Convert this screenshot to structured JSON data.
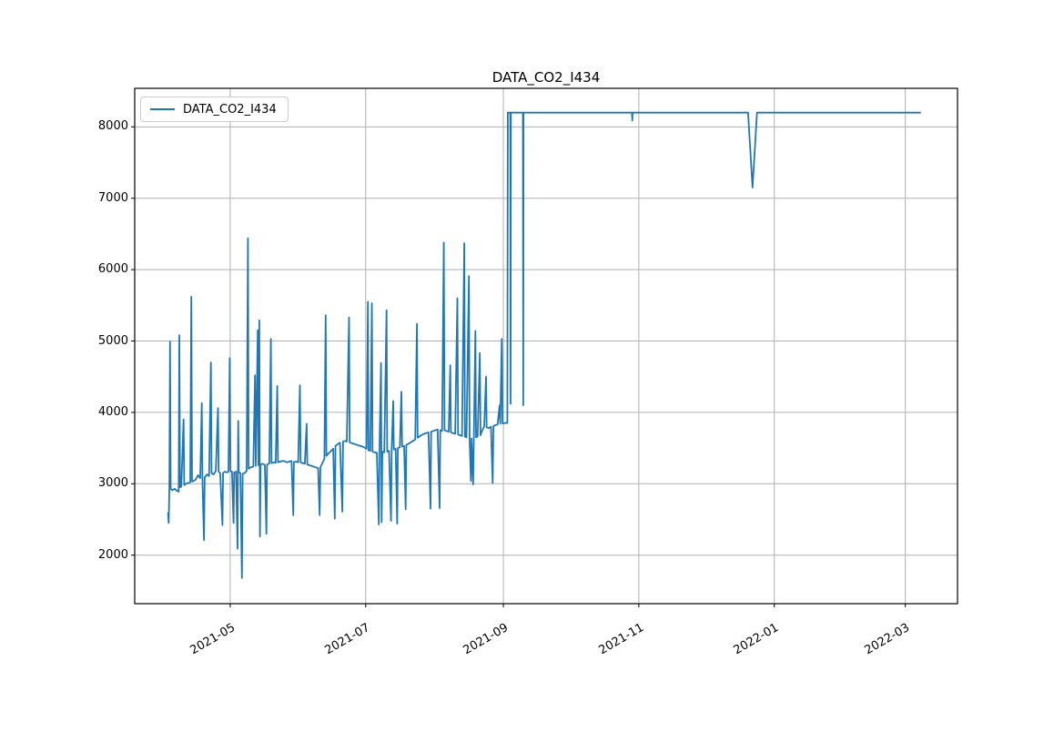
{
  "chart_data": {
    "type": "line",
    "title": "DATA_CO2_I434",
    "legend": {
      "label": "DATA_CO2_I434",
      "position": "upper left"
    },
    "grid": true,
    "line_color": "#1f77b4",
    "grid_color": "#b0b0b0",
    "spine_color": "#000000",
    "background_color": "#ffffff",
    "x_axis": {
      "kind": "time",
      "unit": "days since 2021-04-01",
      "range": [
        -13,
        357.5
      ],
      "ticks": [
        {
          "day": 30,
          "label": "2021-05"
        },
        {
          "day": 91,
          "label": "2021-07"
        },
        {
          "day": 153,
          "label": "2021-09"
        },
        {
          "day": 214,
          "label": "2021-11"
        },
        {
          "day": 275,
          "label": "2022-01"
        },
        {
          "day": 334,
          "label": "2022-03"
        }
      ]
    },
    "y_axis": {
      "range": [
        1320,
        8540
      ],
      "ticks": [
        2000,
        3000,
        4000,
        5000,
        6000,
        7000,
        8000
      ]
    },
    "series": [
      {
        "name": "DATA_CO2_I434",
        "points": [
          [
            2.0,
            2600
          ],
          [
            2.3,
            2450
          ],
          [
            2.6,
            2950
          ],
          [
            2.9,
            4990
          ],
          [
            3.2,
            2930
          ],
          [
            4.0,
            2910
          ],
          [
            5.0,
            2930
          ],
          [
            6.0,
            2900
          ],
          [
            6.8,
            2890
          ],
          [
            7.1,
            5080
          ],
          [
            7.4,
            2950
          ],
          [
            8.0,
            2960
          ],
          [
            9.0,
            3900
          ],
          [
            9.3,
            2980
          ],
          [
            10.0,
            3000
          ],
          [
            11.0,
            3010
          ],
          [
            12.0,
            3020
          ],
          [
            12.5,
            5620
          ],
          [
            12.8,
            3030
          ],
          [
            13.5,
            3040
          ],
          [
            14.5,
            3060
          ],
          [
            15.5,
            3120
          ],
          [
            16.5,
            3080
          ],
          [
            17.2,
            4130
          ],
          [
            17.5,
            3070
          ],
          [
            18.2,
            2210
          ],
          [
            18.5,
            3090
          ],
          [
            19.5,
            3130
          ],
          [
            20.5,
            3110
          ],
          [
            21.3,
            4700
          ],
          [
            21.6,
            3150
          ],
          [
            22.5,
            3130
          ],
          [
            23.5,
            3180
          ],
          [
            24.5,
            4060
          ],
          [
            24.8,
            3170
          ],
          [
            25.5,
            3150
          ],
          [
            26.5,
            2420
          ],
          [
            26.8,
            3150
          ],
          [
            27.5,
            3170
          ],
          [
            28.5,
            3160
          ],
          [
            29.2,
            3170
          ],
          [
            29.8,
            4760
          ],
          [
            30.1,
            3180
          ],
          [
            30.8,
            3170
          ],
          [
            31.5,
            2450
          ],
          [
            31.8,
            3160
          ],
          [
            32.6,
            3170
          ],
          [
            33.3,
            2090
          ],
          [
            33.6,
            3880
          ],
          [
            33.9,
            3160
          ],
          [
            34.6,
            3150
          ],
          [
            35.3,
            1680
          ],
          [
            35.6,
            3140
          ],
          [
            36.5,
            3150
          ],
          [
            37.4,
            3180
          ],
          [
            38.0,
            6440
          ],
          [
            38.3,
            3210
          ],
          [
            39.2,
            3230
          ],
          [
            40.4,
            3240
          ],
          [
            41.2,
            4520
          ],
          [
            41.5,
            3250
          ],
          [
            42.4,
            5150
          ],
          [
            42.7,
            3260
          ],
          [
            43.1,
            5290
          ],
          [
            43.4,
            2260
          ],
          [
            43.7,
            3270
          ],
          [
            44.6,
            3280
          ],
          [
            45.6,
            3265
          ],
          [
            46.3,
            2300
          ],
          [
            46.6,
            3270
          ],
          [
            47.6,
            3285
          ],
          [
            48.3,
            5030
          ],
          [
            48.6,
            3290
          ],
          [
            49.6,
            3300
          ],
          [
            50.5,
            3295
          ],
          [
            51.2,
            4370
          ],
          [
            51.5,
            3300
          ],
          [
            52.5,
            3310
          ],
          [
            53.6,
            3320
          ],
          [
            54.6,
            3315
          ],
          [
            55.6,
            3300
          ],
          [
            56.6,
            3310
          ],
          [
            57.6,
            3320
          ],
          [
            58.4,
            2560
          ],
          [
            58.7,
            3305
          ],
          [
            59.6,
            3310
          ],
          [
            60.6,
            3300
          ],
          [
            61.4,
            4380
          ],
          [
            61.7,
            3300
          ],
          [
            62.6,
            3290
          ],
          [
            63.6,
            3280
          ],
          [
            64.4,
            3840
          ],
          [
            64.7,
            3270
          ],
          [
            65.6,
            3260
          ],
          [
            66.6,
            3250
          ],
          [
            67.6,
            3240
          ],
          [
            68.6,
            3230
          ],
          [
            69.6,
            3220
          ],
          [
            70.3,
            2560
          ],
          [
            70.6,
            3230
          ],
          [
            71.5,
            3290
          ],
          [
            72.4,
            3350
          ],
          [
            73.0,
            5360
          ],
          [
            73.3,
            3390
          ],
          [
            74.4,
            3430
          ],
          [
            75.4,
            3460
          ],
          [
            76.4,
            3490
          ],
          [
            77.1,
            2510
          ],
          [
            77.4,
            3530
          ],
          [
            78.4,
            3555
          ],
          [
            79.4,
            3575
          ],
          [
            80.5,
            2610
          ],
          [
            80.8,
            3590
          ],
          [
            81.5,
            3600
          ],
          [
            82.5,
            3590
          ],
          [
            83.5,
            5330
          ],
          [
            83.8,
            3580
          ],
          [
            84.6,
            3570
          ],
          [
            85.6,
            3560
          ],
          [
            86.6,
            3550
          ],
          [
            87.6,
            3540
          ],
          [
            88.6,
            3530
          ],
          [
            89.6,
            3520
          ],
          [
            90.6,
            3505
          ],
          [
            91.4,
            3490
          ],
          [
            92.0,
            5550
          ],
          [
            92.3,
            3470
          ],
          [
            93.1,
            3460
          ],
          [
            93.8,
            5530
          ],
          [
            94.1,
            3450
          ],
          [
            95.0,
            3440
          ],
          [
            96.0,
            3435
          ],
          [
            96.9,
            2430
          ],
          [
            97.2,
            3440
          ],
          [
            97.9,
            4690
          ],
          [
            98.2,
            2460
          ],
          [
            98.5,
            3450
          ],
          [
            99.4,
            3440
          ],
          [
            100.4,
            5430
          ],
          [
            100.7,
            3450
          ],
          [
            101.5,
            3460
          ],
          [
            102.4,
            2480
          ],
          [
            102.7,
            3470
          ],
          [
            103.4,
            4160
          ],
          [
            103.7,
            3480
          ],
          [
            104.5,
            3490
          ],
          [
            105.2,
            2440
          ],
          [
            105.5,
            3500
          ],
          [
            106.4,
            3510
          ],
          [
            107.1,
            4290
          ],
          [
            107.4,
            3520
          ],
          [
            108.3,
            3530
          ],
          [
            109.0,
            2640
          ],
          [
            109.3,
            3545
          ],
          [
            110.3,
            3560
          ],
          [
            111.3,
            3580
          ],
          [
            112.3,
            3600
          ],
          [
            113.3,
            3620
          ],
          [
            114.1,
            5240
          ],
          [
            114.4,
            3645
          ],
          [
            115.3,
            3665
          ],
          [
            116.3,
            3685
          ],
          [
            117.3,
            3700
          ],
          [
            118.3,
            3710
          ],
          [
            119.3,
            3720
          ],
          [
            120.2,
            2650
          ],
          [
            120.5,
            3730
          ],
          [
            121.4,
            3740
          ],
          [
            122.4,
            3750
          ],
          [
            123.4,
            3760
          ],
          [
            124.3,
            2660
          ],
          [
            124.6,
            3750
          ],
          [
            125.4,
            3740
          ],
          [
            126.2,
            6380
          ],
          [
            126.5,
            3750
          ],
          [
            127.4,
            3740
          ],
          [
            128.4,
            3730
          ],
          [
            129.1,
            4660
          ],
          [
            129.4,
            3720
          ],
          [
            130.3,
            3710
          ],
          [
            131.3,
            3700
          ],
          [
            132.3,
            5600
          ],
          [
            132.6,
            3690
          ],
          [
            133.4,
            3680
          ],
          [
            134.4,
            3670
          ],
          [
            135.4,
            6370
          ],
          [
            135.7,
            3660
          ],
          [
            136.4,
            3650
          ],
          [
            137.5,
            5910
          ],
          [
            137.8,
            3645
          ],
          [
            138.4,
            3040
          ],
          [
            138.7,
            3635
          ],
          [
            139.4,
            2990
          ],
          [
            139.7,
            3640
          ],
          [
            140.4,
            5140
          ],
          [
            140.7,
            3650
          ],
          [
            141.4,
            3660
          ],
          [
            142.4,
            4830
          ],
          [
            142.7,
            3680
          ],
          [
            143.5,
            3750
          ],
          [
            144.4,
            3800
          ],
          [
            145.2,
            4500
          ],
          [
            145.5,
            3790
          ],
          [
            146.4,
            3780
          ],
          [
            147.4,
            3800
          ],
          [
            148.2,
            3010
          ],
          [
            148.5,
            3810
          ],
          [
            149.4,
            3820
          ],
          [
            150.4,
            3830
          ],
          [
            151.3,
            4100
          ],
          [
            151.6,
            3840
          ],
          [
            152.3,
            5030
          ],
          [
            152.6,
            3845
          ],
          [
            153.5,
            3850
          ],
          [
            154.3,
            3855
          ],
          [
            154.8,
            3850
          ],
          [
            155.0,
            8200
          ],
          [
            156.1,
            8200
          ],
          [
            156.25,
            4120
          ],
          [
            156.4,
            8200
          ],
          [
            161.8,
            8200
          ],
          [
            161.95,
            4100
          ],
          [
            162.1,
            8200
          ],
          [
            210.9,
            8200
          ],
          [
            211.05,
            8090
          ],
          [
            211.2,
            8200
          ],
          [
            263.2,
            8200
          ],
          [
            265.2,
            7150
          ],
          [
            267.2,
            8200
          ],
          [
            341.0,
            8200
          ]
        ]
      }
    ]
  }
}
